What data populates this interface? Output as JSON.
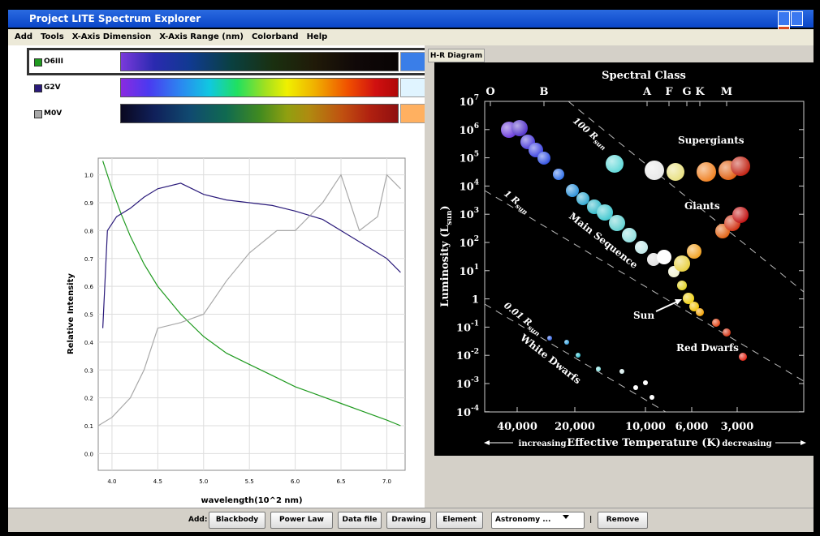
{
  "window": {
    "title": "Project LITE Spectrum Explorer"
  },
  "menu": [
    "Add",
    "Tools",
    "X-Axis Dimension",
    "X-Axis Range (nm)",
    "Colorband",
    "Help"
  ],
  "plot": {
    "ylabel": "Relative Intensity",
    "xlabel": "wavelength(10^2 nm)",
    "xlim": [
      3.85,
      7.2
    ],
    "ylim": [
      -0.06,
      1.06
    ],
    "xticks": [
      {
        "value": 4,
        "label": "4.0"
      },
      4.5,
      {
        "value": 5,
        "label": "5.0"
      },
      5.5,
      {
        "value": 6,
        "label": "6.0"
      },
      6.5,
      {
        "value": 7,
        "label": "7.0"
      }
    ],
    "yticks": [
      {
        "value": 0,
        "label": "0.0"
      },
      0.1,
      0.2,
      0.3,
      0.4,
      0.5,
      0.6,
      0.7,
      0.8,
      0.9,
      {
        "value": 1,
        "label": "1.0"
      }
    ],
    "series": [
      {
        "name": "O6III",
        "color": "#1f9a1f",
        "swatch": "#3a7ee8",
        "x": [
          3.9,
          4.0,
          4.1,
          4.2,
          4.35,
          4.5,
          4.75,
          5.0,
          5.25,
          5.5,
          5.75,
          6.0,
          6.25,
          6.5,
          6.75,
          7.0,
          7.15
        ],
        "values": [
          1.05,
          0.95,
          0.86,
          0.78,
          0.68,
          0.6,
          0.5,
          0.42,
          0.36,
          0.32,
          0.28,
          0.24,
          0.21,
          0.18,
          0.15,
          0.12,
          0.1
        ]
      },
      {
        "name": "G2V",
        "color": "#2a1a7a",
        "swatch": "#e0f4ff",
        "x": [
          3.9,
          3.95,
          4.05,
          4.2,
          4.35,
          4.5,
          4.75,
          5.0,
          5.25,
          5.5,
          5.75,
          6.0,
          6.3,
          6.6,
          6.8,
          7.0,
          7.15
        ],
        "values": [
          0.45,
          0.8,
          0.85,
          0.88,
          0.92,
          0.95,
          0.97,
          0.93,
          0.91,
          0.9,
          0.89,
          0.87,
          0.84,
          0.78,
          0.74,
          0.7,
          0.65
        ]
      },
      {
        "name": "M0V",
        "color": "#a8a8a8",
        "swatch": "#ffb060",
        "x": [
          3.85,
          4.0,
          4.2,
          4.35,
          4.5,
          4.75,
          5.0,
          5.25,
          5.5,
          5.8,
          6.0,
          6.3,
          6.5,
          6.7,
          6.9,
          7.0,
          7.15
        ],
        "values": [
          0.1,
          0.13,
          0.2,
          0.3,
          0.45,
          0.47,
          0.5,
          0.62,
          0.72,
          0.8,
          0.8,
          0.9,
          1.0,
          0.8,
          0.85,
          1.0,
          0.95
        ]
      }
    ]
  },
  "tab": "H-R Diagram",
  "hr": {
    "title": "Spectral Class",
    "classes": [
      "O",
      "B",
      "A",
      "F",
      "G",
      "K",
      "M"
    ],
    "ylabel": {
      "text": "Luminosity (L",
      "sub": "sun",
      "end": ")"
    },
    "yticks": [
      {
        "base": "10",
        "exp": "7"
      },
      {
        "base": "10",
        "exp": "6"
      },
      {
        "base": "10",
        "exp": "5"
      },
      {
        "base": "10",
        "exp": "4"
      },
      {
        "base": "10",
        "exp": "3"
      },
      {
        "base": "10",
        "exp": "2"
      },
      {
        "base": "10",
        "exp": "1"
      },
      {
        "base": "1"
      },
      {
        "base": "10",
        "exp": "-1"
      },
      {
        "base": "10",
        "exp": "-2"
      },
      {
        "base": "10",
        "exp": "-3"
      },
      {
        "base": "10",
        "exp": "-4"
      }
    ],
    "xticks": [
      "40,000",
      "20,000",
      "10,000",
      "6,000",
      "3,000"
    ],
    "xlabel": "Effective Temperature (K)",
    "left": "increasing",
    "right": "decreasing",
    "regions": [
      "Supergiants",
      "Giants",
      "Main Sequence",
      "Sun",
      "Red Dwarfs",
      "White Dwarfs"
    ],
    "radii": [
      {
        "text": "100 R",
        "sub": "sun"
      },
      {
        "text": "1 R",
        "sub": "sun"
      },
      {
        "text": "0.01 R",
        "sub": "sun"
      }
    ]
  },
  "toolbar": {
    "label": "Add:",
    "buttons": [
      "Blackbody",
      "Power Law",
      "Data file",
      "Drawing",
      "Element"
    ],
    "dropdown": "Astronomy ...",
    "separator": "|",
    "remove": "Remove"
  }
}
